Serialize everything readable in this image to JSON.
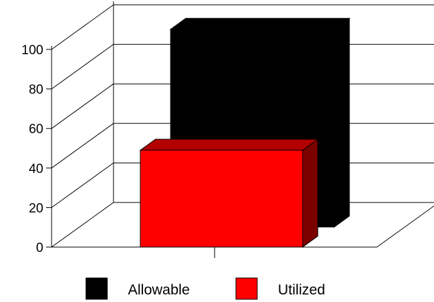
{
  "chart_data": {
    "type": "bar",
    "style": "3d-depth",
    "title": "",
    "xlabel": "",
    "ylabel": "",
    "categories": [
      ""
    ],
    "ylim": [
      0,
      100
    ],
    "yticks": [
      "0",
      "20",
      "40",
      "60",
      "80",
      "100"
    ],
    "grid": true,
    "legend_position": "bottom",
    "series": [
      {
        "name": "Allowable",
        "values": [
          100
        ],
        "color": "#000000"
      },
      {
        "name": "Utilized",
        "values": [
          49
        ],
        "color": "#ff0000"
      }
    ]
  }
}
